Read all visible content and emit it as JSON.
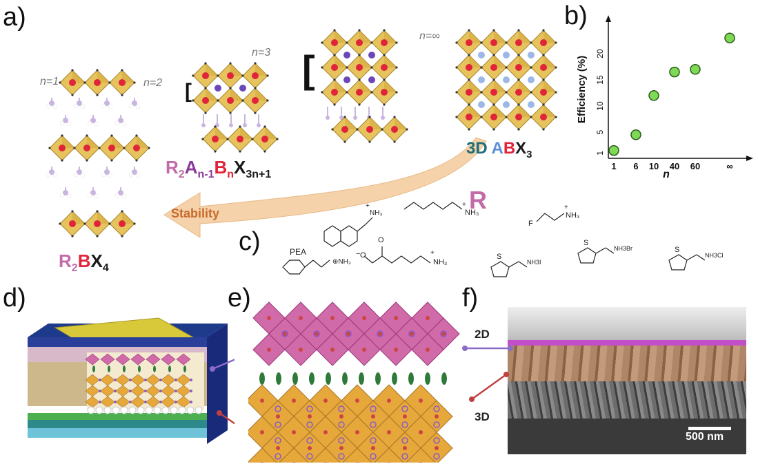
{
  "labels": {
    "a": "a)",
    "b": "b)",
    "c": "c)",
    "d": "d)",
    "e": "e)",
    "f": "f)"
  },
  "panel_a": {
    "n1": "n=1",
    "n2": "n=2",
    "n3": "n=3",
    "ninf": "n=∞",
    "formula_rp_R": "R",
    "formula_rp_2": "2",
    "formula_rp_A": "A",
    "formula_rp_n1": "n-1",
    "formula_rp_B": "B",
    "formula_rp_n": "n",
    "formula_rp_X": "X",
    "formula_rp_3n1": "3n+1",
    "formula_3d_prefix": "3D",
    "formula_3d_A": "A",
    "formula_3d_B": "B",
    "formula_3d_X": "X",
    "formula_3d_3": "3",
    "formula_2d_R": "R",
    "formula_2d_2": "2",
    "formula_2d_B": "B",
    "formula_2d_X": "X",
    "formula_2d_4": "4",
    "stability": "Stability"
  },
  "panel_c": {
    "R": "R",
    "pea": "PEA",
    "nh3": "NH",
    "nh3_sub": "3",
    "nh3i": "NH3I",
    "nh3br": "NH3Br",
    "nh3cl": "NH3Cl",
    "s": "S",
    "f": "F",
    "plus": "+",
    "minus": "−",
    "o": "O"
  },
  "panel_f": {
    "label_2d": "2D",
    "label_3d": "3D",
    "scalebar": "500 nm"
  },
  "chart_data": {
    "type": "scatter",
    "xlabel": "n",
    "ylabel": "Efficiency (%)",
    "x_ticks": [
      "1",
      "6",
      "10",
      "40",
      "60",
      "∞"
    ],
    "y_ticks": [
      "1",
      "5",
      "10",
      "15",
      "20"
    ],
    "points": [
      {
        "x": "1",
        "y": 1.5
      },
      {
        "x": "6",
        "y": 4.5
      },
      {
        "x": "10",
        "y": 12
      },
      {
        "x": "40",
        "y": 16.5
      },
      {
        "x": "60",
        "y": 17
      },
      {
        "x": "∞",
        "y": 23
      }
    ],
    "ylim": [
      0,
      25
    ],
    "marker_color": "#7ed957"
  },
  "colors": {
    "octahedron": "#e6c35c",
    "octahedron_edge": "#a8862a",
    "b_site": "#e0243a",
    "a_site": "#6a48b8",
    "cs_site": "#9bb8e8",
    "organic": "#c8b5e0",
    "stability_arrow": "#f1c89a",
    "pink_layer": "#d16aa8",
    "green_spacer": "#2f7a3a"
  }
}
